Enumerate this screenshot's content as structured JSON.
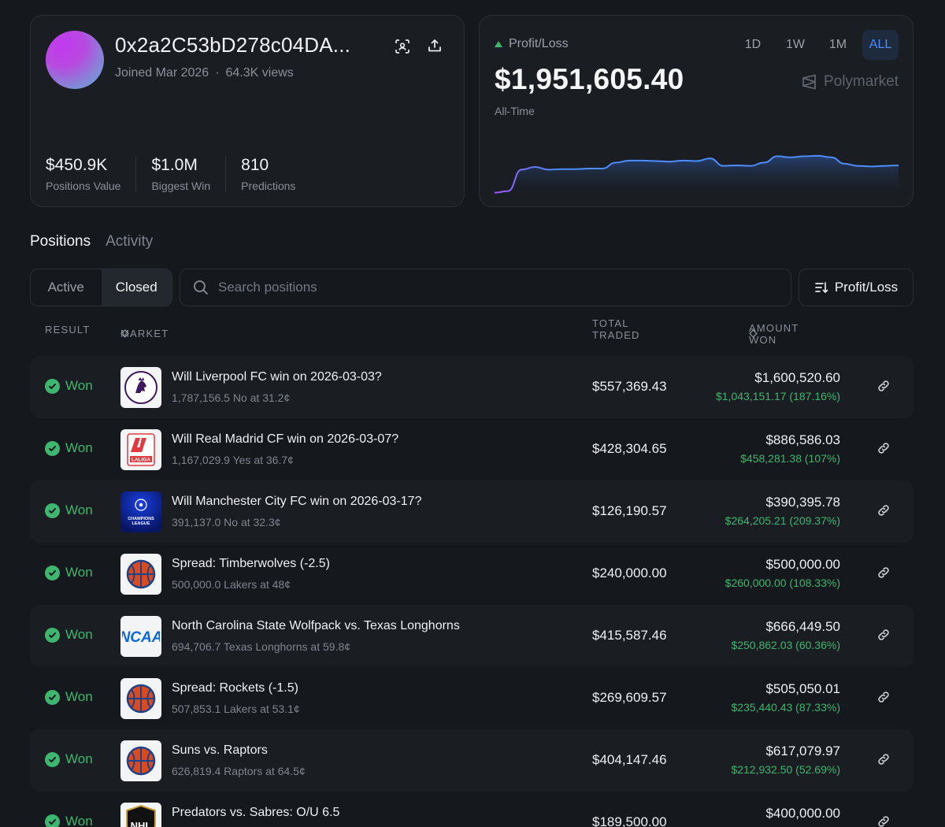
{
  "profile": {
    "address": "0x2a2C53bD278c04DA...",
    "joined": "Joined Mar 2026",
    "views": "64.3K views",
    "stats": [
      {
        "value": "$450.9K",
        "label": "Positions Value"
      },
      {
        "value": "$1.0M",
        "label": "Biggest Win"
      },
      {
        "value": "810",
        "label": "Predictions"
      }
    ]
  },
  "pl": {
    "label": "Profit/Loss",
    "value": "$1,951,605.40",
    "period": "All-Time",
    "brand": "Polymarket",
    "ranges": [
      "1D",
      "1W",
      "1M",
      "ALL"
    ],
    "active_range": "ALL",
    "colors": {
      "line": "#4c8dff",
      "line_start": "#a259ff",
      "up": "#3fb66f"
    }
  },
  "chart_data": {
    "type": "area",
    "values": [
      0.02,
      0.05,
      0.45,
      0.5,
      0.45,
      0.46,
      0.46,
      0.47,
      0.47,
      0.58,
      0.62,
      0.62,
      0.61,
      0.6,
      0.62,
      0.61,
      0.66,
      0.52,
      0.53,
      0.52,
      0.58,
      0.7,
      0.68,
      0.7,
      0.71,
      0.68,
      0.56,
      0.52,
      0.51,
      0.52,
      0.53
    ]
  },
  "tabs": [
    "Positions",
    "Activity"
  ],
  "segments": [
    "Active",
    "Closed"
  ],
  "search": {
    "placeholder": "Search positions"
  },
  "sort_label": "Profit/Loss",
  "columns": {
    "result": "RESULT",
    "market": "MARKET",
    "total": "TOTAL TRADED",
    "won": "AMOUNT WON"
  },
  "rows": [
    {
      "result": "Won",
      "logo": "premier-league-logo",
      "title": "Will Liverpool FC win on 2026-03-03?",
      "sub": "1,787,156.5 No at 31.2¢",
      "traded": "$557,369.43",
      "won": "$1,600,520.60",
      "gain": "$1,043,151.17 (187.16%)"
    },
    {
      "result": "Won",
      "logo": "laliga-logo",
      "title": "Will Real Madrid CF win on 2026-03-07?",
      "sub": "1,167,029.9 Yes at 36.7¢",
      "traded": "$428,304.65",
      "won": "$886,586.03",
      "gain": "$458,281.38 (107%)"
    },
    {
      "result": "Won",
      "logo": "champions-league-logo",
      "title": "Will Manchester City FC win on 2026-03-17?",
      "sub": "391,137.0 No at 32.3¢",
      "traded": "$126,190.57",
      "won": "$390,395.78",
      "gain": "$264,205.21 (209.37%)"
    },
    {
      "result": "Won",
      "logo": "basketball-logo",
      "title": "Spread: Timberwolves (-2.5)",
      "sub": "500,000.0 Lakers at 48¢",
      "traded": "$240,000.00",
      "won": "$500,000.00",
      "gain": "$260,000.00 (108.33%)"
    },
    {
      "result": "Won",
      "logo": "ncaa-logo",
      "title": "North Carolina State Wolfpack vs. Texas Longhorns",
      "sub": "694,706.7 Texas Longhorns at 59.8¢",
      "traded": "$415,587.46",
      "won": "$666,449.50",
      "gain": "$250,862.03 (60.36%)"
    },
    {
      "result": "Won",
      "logo": "basketball-logo",
      "title": "Spread: Rockets (-1.5)",
      "sub": "507,853.1 Lakers at 53.1¢",
      "traded": "$269,609.57",
      "won": "$505,050.01",
      "gain": "$235,440.43 (87.33%)"
    },
    {
      "result": "Won",
      "logo": "basketball-logo",
      "title": "Suns vs. Raptors",
      "sub": "626,819.4 Raptors at 64.5¢",
      "traded": "$404,147.46",
      "won": "$617,079.97",
      "gain": "$212,932.50 (52.69%)"
    },
    {
      "result": "Won",
      "logo": "nhl-logo",
      "title": "Predators vs. Sabres: O/U 6.5",
      "sub": "",
      "traded": "$189,500.00",
      "won": "$400,000.00",
      "gain": ""
    }
  ]
}
